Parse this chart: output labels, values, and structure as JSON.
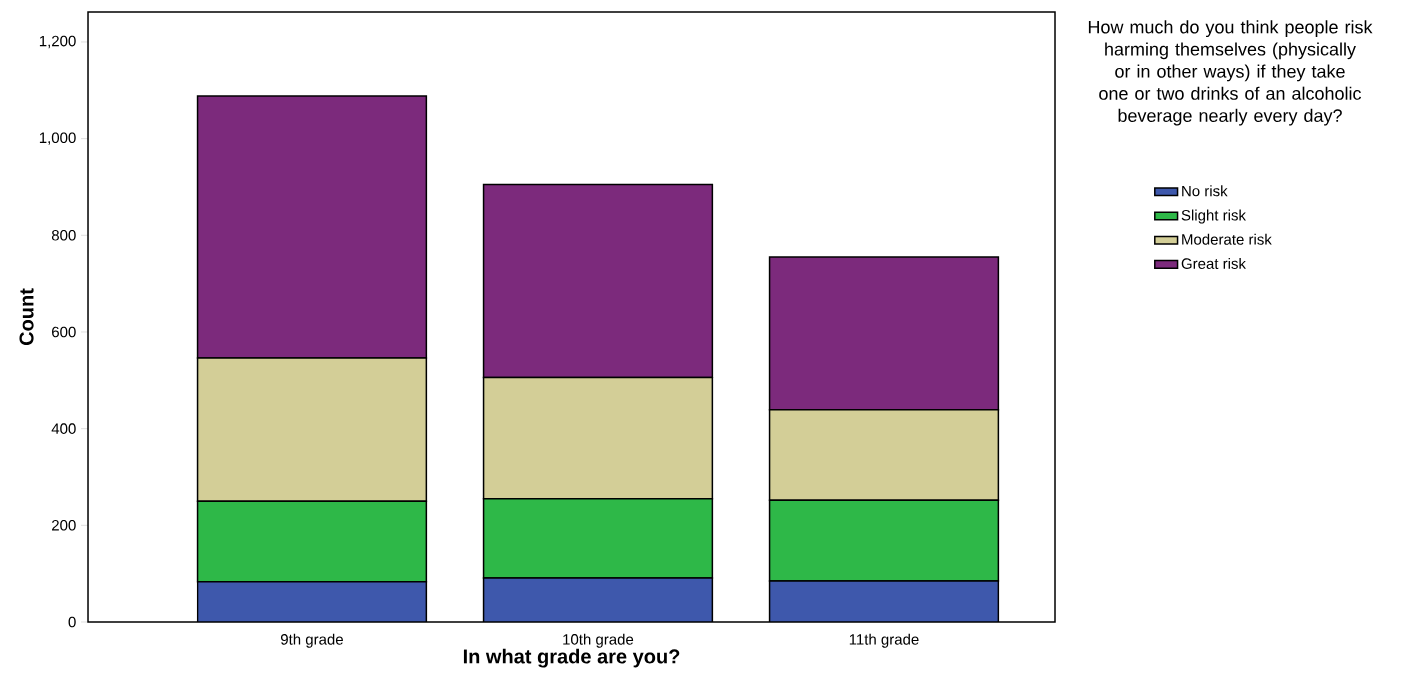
{
  "chart_data": {
    "type": "bar",
    "stacked": true,
    "xlabel": "In what grade are you?",
    "ylabel": "Count",
    "legend_title": "How much do you think people risk harming themselves (physically or in other ways) if they take one or two drinks of an alcoholic beverage nearly every day?",
    "legend": "right",
    "categories": [
      "9th grade",
      "10th grade",
      "11th grade"
    ],
    "ylim": [
      0,
      1262
    ],
    "yticks": [
      0,
      200,
      400,
      600,
      800,
      {
        "value": 1000,
        "label": "1,000"
      },
      {
        "value": 1200,
        "label": "1,200"
      }
    ],
    "series": [
      {
        "name": "No risk",
        "color": "#3e58ac",
        "values": [
          83,
          91,
          85
        ]
      },
      {
        "name": "Slight risk",
        "color": "#2eb848",
        "values": [
          167,
          164,
          167
        ]
      },
      {
        "name": "Moderate risk",
        "color": "#d3ce97",
        "values": [
          296,
          251,
          187
        ]
      },
      {
        "name": "Great risk",
        "color": "#7c2a7c",
        "values": [
          542,
          399,
          316
        ]
      }
    ]
  }
}
